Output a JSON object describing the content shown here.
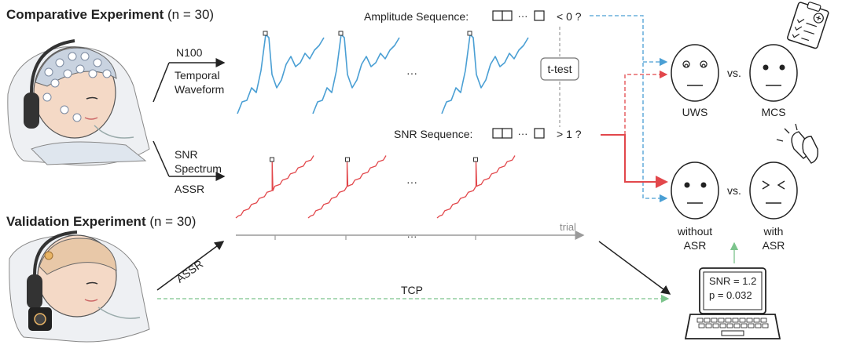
{
  "comparative": {
    "title_bold": "Comparative Experiment",
    "title_rest": " (n = 30)"
  },
  "validation": {
    "title_bold": "Validation Experiment",
    "title_rest": " (n = 30)"
  },
  "branch_top": {
    "line1": "N100",
    "line2": "Temporal",
    "line3": "Waveform"
  },
  "branch_bottom": {
    "line1": "SNR",
    "line2": "Spectrum",
    "line3": "ASSR"
  },
  "amplitude": {
    "label": "Amplitude Sequence:",
    "dots": "···",
    "cond": "< 0 ?"
  },
  "snr_seq": {
    "label": "SNR Sequence:",
    "dots": "···",
    "cond": "> 1 ?"
  },
  "ttest": "t-test",
  "ellipsis": "···",
  "trial_label": "trial",
  "assr_arrow": "ASSR",
  "tcp": "TCP",
  "faces": {
    "uws": "UWS",
    "mcs": "MCS",
    "vs": "vs.",
    "without_1": "without",
    "without_2": "ASR",
    "with_1": "with",
    "with_2": "ASR"
  },
  "laptop": {
    "line1": "SNR = 1.2",
    "line2": "p = 0.032"
  },
  "colors": {
    "blue": "#4a9fd4",
    "red": "#e2474b",
    "green": "#7cc48c",
    "gray": "#9a9a9a"
  }
}
